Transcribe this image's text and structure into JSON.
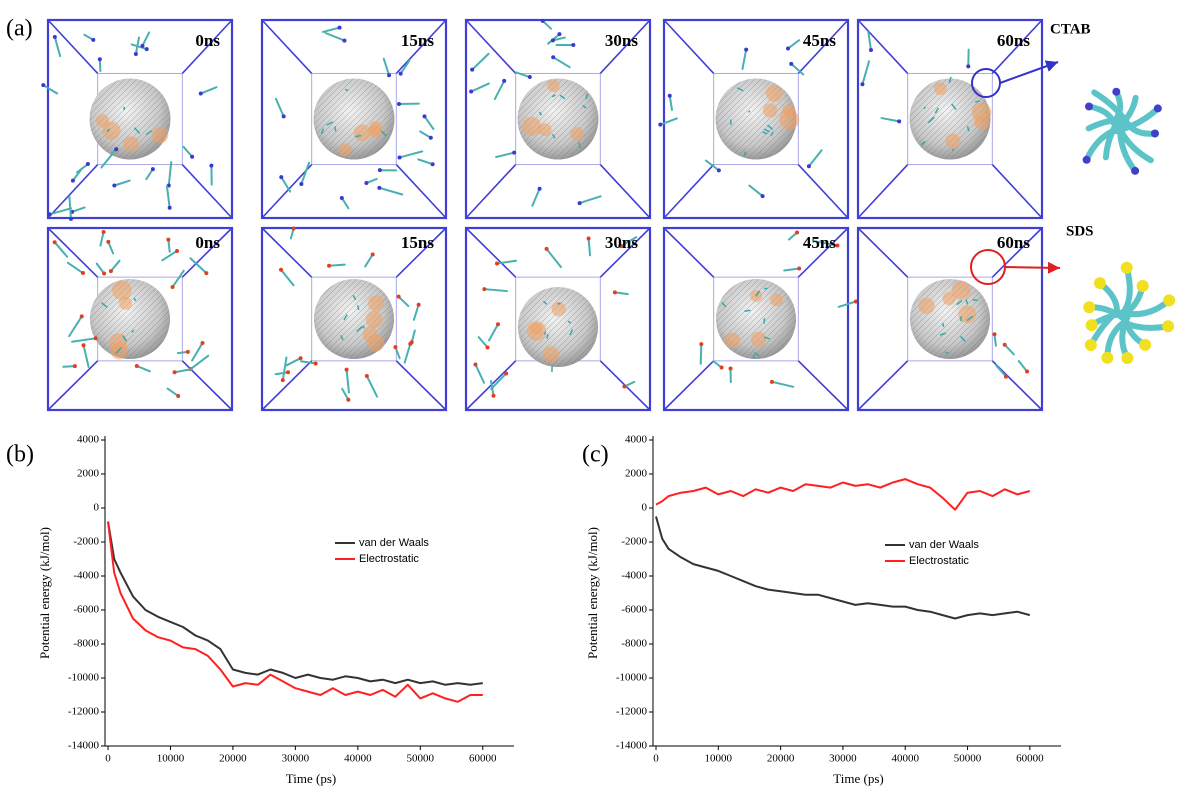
{
  "simulation": {
    "label": "(a)",
    "rows": [
      {
        "surfactant": "CTAB",
        "times": [
          "0ns",
          "15ns",
          "30ns",
          "45ns",
          "60ns"
        ]
      },
      {
        "surfactant": "SDS",
        "times": [
          "0ns",
          "15ns",
          "30ns",
          "45ns",
          "60ns"
        ]
      }
    ]
  },
  "chart_data": [
    {
      "type": "line",
      "label": "(b)",
      "x_label": "Time (ps)",
      "y_label": "Potential energy (kJ/mol)",
      "x": [
        0,
        1000,
        2000,
        4000,
        6000,
        8000,
        10000,
        12000,
        14000,
        16000,
        18000,
        20000,
        22000,
        24000,
        26000,
        28000,
        30000,
        32000,
        34000,
        36000,
        38000,
        40000,
        42000,
        44000,
        46000,
        48000,
        50000,
        52000,
        54000,
        56000,
        58000,
        60000
      ],
      "series": [
        {
          "name": "van der Waals",
          "color": "#333333",
          "values": [
            -800,
            -3000,
            -3800,
            -5200,
            -6000,
            -6400,
            -6700,
            -7000,
            -7500,
            -7800,
            -8300,
            -9500,
            -9700,
            -9800,
            -9500,
            -9700,
            -10000,
            -9800,
            -10000,
            -10100,
            -9900,
            -10000,
            -10200,
            -10100,
            -10300,
            -10100,
            -10300,
            -10200,
            -10400,
            -10300,
            -10400,
            -10300
          ]
        },
        {
          "name": "Electrostatic",
          "color": "#ff2020",
          "values": [
            -800,
            -3800,
            -5000,
            -6500,
            -7200,
            -7600,
            -7800,
            -8200,
            -8300,
            -8700,
            -9500,
            -10500,
            -10300,
            -10400,
            -9800,
            -10200,
            -10600,
            -10800,
            -11000,
            -10600,
            -11000,
            -10800,
            -11000,
            -10700,
            -11100,
            -10400,
            -11200,
            -10900,
            -11200,
            -11400,
            -11000,
            -11000
          ]
        }
      ],
      "xlim": [
        0,
        65000
      ],
      "ylim": [
        -14000,
        4000
      ],
      "xticks": [
        0,
        10000,
        20000,
        30000,
        40000,
        50000,
        60000
      ],
      "yticks": [
        -14000,
        -12000,
        -10000,
        -8000,
        -6000,
        -4000,
        -2000,
        0,
        2000,
        4000
      ]
    },
    {
      "type": "line",
      "label": "(c)",
      "x_label": "Time (ps)",
      "y_label": "Potential energy (kJ/mol)",
      "x": [
        0,
        1000,
        2000,
        4000,
        6000,
        8000,
        10000,
        12000,
        14000,
        16000,
        18000,
        20000,
        22000,
        24000,
        26000,
        28000,
        30000,
        32000,
        34000,
        36000,
        38000,
        40000,
        42000,
        44000,
        46000,
        48000,
        50000,
        52000,
        54000,
        56000,
        58000,
        60000
      ],
      "series": [
        {
          "name": "van der Waals",
          "color": "#333333",
          "values": [
            -500,
            -1800,
            -2400,
            -2900,
            -3300,
            -3500,
            -3700,
            -4000,
            -4300,
            -4600,
            -4800,
            -4900,
            -5000,
            -5100,
            -5100,
            -5300,
            -5500,
            -5700,
            -5600,
            -5700,
            -5800,
            -5800,
            -6000,
            -6100,
            -6300,
            -6500,
            -6300,
            -6200,
            -6300,
            -6200,
            -6100,
            -6300
          ]
        },
        {
          "name": "Electrostatic",
          "color": "#ff2020",
          "values": [
            200,
            400,
            700,
            900,
            1000,
            1200,
            800,
            1000,
            700,
            1100,
            900,
            1200,
            1000,
            1400,
            1300,
            1200,
            1500,
            1300,
            1400,
            1200,
            1500,
            1700,
            1400,
            1200,
            600,
            -100,
            900,
            1000,
            700,
            1100,
            800,
            1000
          ]
        }
      ],
      "xlim": [
        0,
        65000
      ],
      "ylim": [
        -14000,
        4000
      ],
      "xticks": [
        0,
        10000,
        20000,
        30000,
        40000,
        50000,
        60000
      ],
      "yticks": [
        -14000,
        -12000,
        -10000,
        -8000,
        -6000,
        -4000,
        -2000,
        0,
        2000,
        4000
      ]
    }
  ]
}
